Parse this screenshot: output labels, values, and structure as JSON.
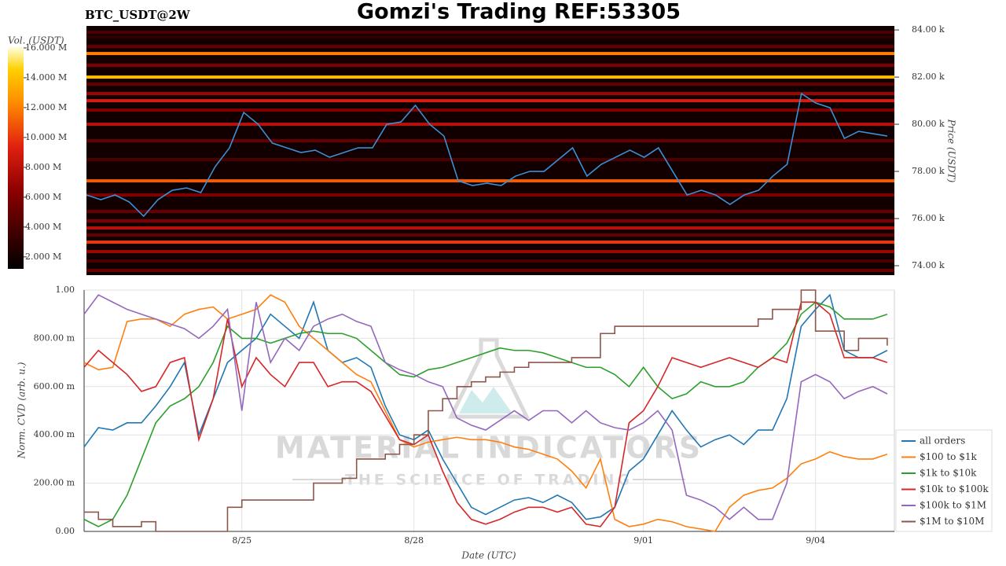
{
  "header": {
    "title": "Gomzi's Trading REF:53305",
    "symbol": "BTC_USDT@2W"
  },
  "watermark": {
    "name": "MATERIAL INDICATORS",
    "tagline": "THE SCIENCE OF TRADING"
  },
  "chart_data": [
    {
      "type": "heatmap",
      "y_label": "Price (USDT)",
      "colorbar_label": "Vol. (USDT)",
      "xlim": [
        0,
        56.5
      ],
      "ylim": [
        73.6,
        84.17
      ],
      "yticks": [
        {
          "value": 74,
          "label": "74.00 k"
        },
        {
          "value": 76,
          "label": "76.00 k"
        },
        {
          "value": 78,
          "label": "78.00 k"
        },
        {
          "value": 80,
          "label": "80.00 k"
        },
        {
          "value": 82,
          "label": "82.00 k"
        },
        {
          "value": 84,
          "label": "84.00 k"
        }
      ],
      "zlim": [
        1.2,
        16.05
      ],
      "zticks": [
        {
          "value": 2,
          "label": "2.000 M"
        },
        {
          "value": 4,
          "label": "4.000 M"
        },
        {
          "value": 6,
          "label": "6.000 M"
        },
        {
          "value": 8,
          "label": "8.000 M"
        },
        {
          "value": 10,
          "label": "10.000 M"
        },
        {
          "value": 12,
          "label": "12.000 M"
        },
        {
          "value": 14,
          "label": "14.000 M"
        },
        {
          "value": 16,
          "label": "16.000 M"
        }
      ],
      "levels": [
        {
          "price": 83.9,
          "volume": 4
        },
        {
          "price": 83.7,
          "volume": 3
        },
        {
          "price": 83.3,
          "volume": 5
        },
        {
          "price": 83.0,
          "volume": 12
        },
        {
          "price": 82.5,
          "volume": 6
        },
        {
          "price": 82.0,
          "volume": 14
        },
        {
          "price": 81.7,
          "volume": 5
        },
        {
          "price": 81.3,
          "volume": 7
        },
        {
          "price": 81.0,
          "volume": 9
        },
        {
          "price": 80.6,
          "volume": 6
        },
        {
          "price": 80.0,
          "volume": 8
        },
        {
          "price": 79.3,
          "volume": 5
        },
        {
          "price": 78.5,
          "volume": 4
        },
        {
          "price": 77.6,
          "volume": 11
        },
        {
          "price": 77.0,
          "volume": 6
        },
        {
          "price": 76.3,
          "volume": 5
        },
        {
          "price": 75.9,
          "volume": 6
        },
        {
          "price": 75.6,
          "volume": 8
        },
        {
          "price": 75.3,
          "volume": 5
        },
        {
          "price": 75.0,
          "volume": 10
        },
        {
          "price": 74.6,
          "volume": 7
        },
        {
          "price": 74.2,
          "volume": 4
        },
        {
          "price": 73.8,
          "volume": 5
        }
      ],
      "series": [
        {
          "color": "#3a8fd6",
          "values": [
            77.0,
            76.8,
            77.0,
            76.7,
            76.1,
            76.8,
            77.2,
            77.3,
            77.1,
            78.2,
            79.0,
            80.5,
            80.0,
            79.2,
            79.0,
            78.8,
            78.9,
            78.6,
            78.8,
            79.0,
            79.0,
            80.0,
            80.1,
            80.8,
            80.0,
            79.5,
            77.6,
            77.4,
            77.5,
            77.4,
            77.8,
            78.0,
            78.0,
            78.5,
            79.0,
            77.8,
            78.3,
            78.6,
            78.9,
            78.6,
            79.0,
            78.0,
            77.0,
            77.2,
            77.0,
            76.6,
            77.0,
            77.2,
            77.8,
            78.3,
            81.3,
            80.9,
            80.7,
            79.4,
            79.7,
            79.6,
            79.5
          ]
        }
      ]
    },
    {
      "type": "line",
      "x_label": "Date (UTC)",
      "y_label": "Norm. CVD (arb. u.)",
      "grid": true,
      "legend": "lower right",
      "xlim": [
        0,
        56.5
      ],
      "xticks": [
        {
          "value": 11,
          "label": "8/25"
        },
        {
          "value": 23,
          "label": "8/28"
        },
        {
          "value": 39,
          "label": "9/01"
        },
        {
          "value": 51,
          "label": "9/04"
        }
      ],
      "ylim": [
        0,
        1
      ],
      "yticks": [
        {
          "value": 0,
          "label": "0.00"
        },
        {
          "value": 0.2,
          "label": "200.00 m"
        },
        {
          "value": 0.4,
          "label": "400.00 m"
        },
        {
          "value": 0.6,
          "label": "600.00 m"
        },
        {
          "value": 0.8,
          "label": "800.00 m"
        },
        {
          "value": 1,
          "label": "1.00"
        }
      ],
      "series": [
        {
          "name": "all orders",
          "color": "#1f77b4",
          "values": [
            0.35,
            0.43,
            0.42,
            0.45,
            0.45,
            0.52,
            0.6,
            0.7,
            0.4,
            0.55,
            0.7,
            0.75,
            0.8,
            0.9,
            0.85,
            0.8,
            0.95,
            0.75,
            0.7,
            0.72,
            0.68,
            0.52,
            0.4,
            0.38,
            0.42,
            0.3,
            0.2,
            0.1,
            0.07,
            0.1,
            0.13,
            0.14,
            0.12,
            0.15,
            0.12,
            0.05,
            0.06,
            0.1,
            0.25,
            0.3,
            0.4,
            0.5,
            0.42,
            0.35,
            0.38,
            0.4,
            0.36,
            0.42,
            0.42,
            0.55,
            0.85,
            0.92,
            0.98,
            0.75,
            0.72,
            0.72,
            0.75
          ]
        },
        {
          "name": "$100 to $1k",
          "color": "#ff7f0e",
          "values": [
            0.7,
            0.67,
            0.68,
            0.87,
            0.88,
            0.88,
            0.85,
            0.9,
            0.92,
            0.93,
            0.88,
            0.9,
            0.92,
            0.98,
            0.95,
            0.85,
            0.8,
            0.75,
            0.7,
            0.65,
            0.62,
            0.5,
            0.38,
            0.35,
            0.37,
            0.38,
            0.39,
            0.38,
            0.38,
            0.37,
            0.35,
            0.34,
            0.32,
            0.3,
            0.25,
            0.18,
            0.3,
            0.05,
            0.02,
            0.03,
            0.05,
            0.04,
            0.02,
            0.01,
            0,
            0.1,
            0.15,
            0.17,
            0.18,
            0.22,
            0.28,
            0.3,
            0.33,
            0.31,
            0.3,
            0.3,
            0.32
          ]
        },
        {
          "name": "$1k to $10k",
          "color": "#2ca02c",
          "values": [
            0.05,
            0.02,
            0.05,
            0.15,
            0.3,
            0.45,
            0.52,
            0.55,
            0.6,
            0.7,
            0.85,
            0.8,
            0.8,
            0.78,
            0.8,
            0.82,
            0.83,
            0.82,
            0.82,
            0.8,
            0.75,
            0.7,
            0.65,
            0.64,
            0.67,
            0.68,
            0.7,
            0.72,
            0.74,
            0.76,
            0.75,
            0.75,
            0.74,
            0.72,
            0.7,
            0.68,
            0.68,
            0.65,
            0.6,
            0.68,
            0.6,
            0.55,
            0.57,
            0.62,
            0.6,
            0.6,
            0.62,
            0.68,
            0.72,
            0.78,
            0.9,
            0.95,
            0.93,
            0.88,
            0.88,
            0.88,
            0.9
          ]
        },
        {
          "name": "$10k to $100k",
          "color": "#d62728",
          "values": [
            0.68,
            0.75,
            0.7,
            0.65,
            0.58,
            0.6,
            0.7,
            0.72,
            0.38,
            0.55,
            0.88,
            0.6,
            0.72,
            0.65,
            0.6,
            0.7,
            0.7,
            0.6,
            0.62,
            0.62,
            0.58,
            0.48,
            0.38,
            0.36,
            0.4,
            0.25,
            0.12,
            0.05,
            0.03,
            0.05,
            0.08,
            0.1,
            0.1,
            0.08,
            0.1,
            0.03,
            0.02,
            0.1,
            0.45,
            0.5,
            0.6,
            0.72,
            0.7,
            0.68,
            0.7,
            0.72,
            0.7,
            0.68,
            0.72,
            0.7,
            0.95,
            0.95,
            0.9,
            0.72,
            0.72,
            0.72,
            0.7
          ]
        },
        {
          "name": "$100k to $1M",
          "color": "#9467bd",
          "values": [
            0.9,
            0.98,
            0.95,
            0.92,
            0.9,
            0.88,
            0.86,
            0.84,
            0.8,
            0.85,
            0.92,
            0.5,
            0.95,
            0.7,
            0.8,
            0.75,
            0.85,
            0.88,
            0.9,
            0.87,
            0.85,
            0.7,
            0.67,
            0.65,
            0.62,
            0.6,
            0.47,
            0.44,
            0.42,
            0.46,
            0.5,
            0.46,
            0.5,
            0.5,
            0.45,
            0.5,
            0.45,
            0.43,
            0.42,
            0.45,
            0.5,
            0.42,
            0.15,
            0.13,
            0.1,
            0.05,
            0.1,
            0.05,
            0.05,
            0.2,
            0.62,
            0.65,
            0.62,
            0.55,
            0.58,
            0.6,
            0.57
          ]
        },
        {
          "name": "$1M to $10M",
          "color": "#8c564b",
          "step": true,
          "values": [
            0.08,
            0.05,
            0.02,
            0.02,
            0.04,
            0,
            0,
            0,
            0,
            0,
            0.1,
            0.13,
            0.13,
            0.13,
            0.13,
            0.13,
            0.2,
            0.2,
            0.22,
            0.3,
            0.3,
            0.32,
            0.36,
            0.4,
            0.5,
            0.55,
            0.6,
            0.62,
            0.64,
            0.66,
            0.68,
            0.7,
            0.7,
            0.7,
            0.72,
            0.72,
            0.82,
            0.85,
            0.85,
            0.85,
            0.85,
            0.85,
            0.85,
            0.85,
            0.85,
            0.85,
            0.85,
            0.88,
            0.92,
            0.92,
            1.0,
            0.83,
            0.83,
            0.75,
            0.8,
            0.8,
            0.77
          ]
        }
      ]
    }
  ]
}
